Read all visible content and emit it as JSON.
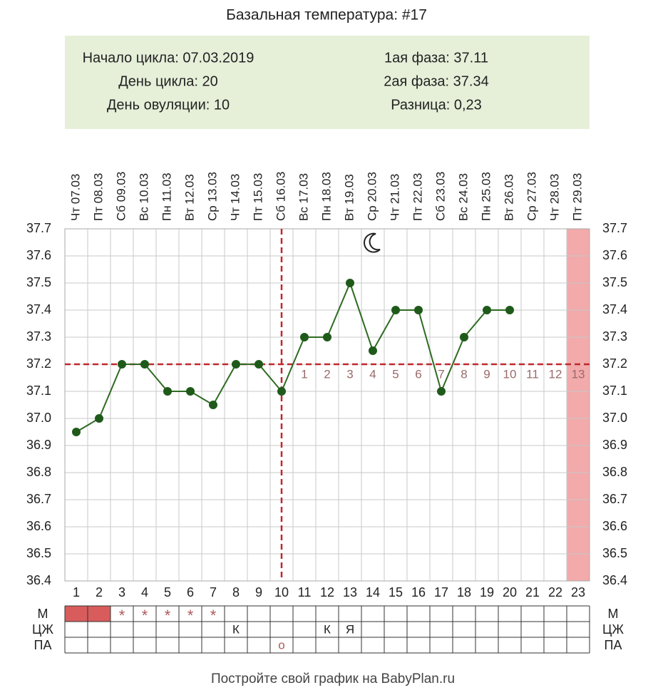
{
  "chart_data": {
    "type": "line",
    "title": "Базальная температура: #17",
    "info_left": [
      "Начало цикла: 07.03.2019",
      "День цикла: 20",
      "День овуляции: 10"
    ],
    "info_right": [
      "1ая фаза: 37.11",
      "2ая фаза: 37.34",
      "Разница: 0,23"
    ],
    "x": [
      1,
      2,
      3,
      4,
      5,
      6,
      7,
      8,
      9,
      10,
      11,
      12,
      13,
      14,
      15,
      16,
      17,
      18,
      19,
      20,
      21,
      22,
      23
    ],
    "dates": [
      "Чт 07.03",
      "Пт 08.03",
      "Сб 09.03",
      "Вс 10.03",
      "Пн 11.03",
      "Вт 12.03",
      "Ср 13.03",
      "Чт 14.03",
      "Пт 15.03",
      "Сб 16.03",
      "Вс 17.03",
      "Пн 18.03",
      "Вт 19.03",
      "Ср 20.03",
      "Чт 21.03",
      "Пт 22.03",
      "Сб 23.03",
      "Вс 24.03",
      "Пн 25.03",
      "Вт 26.03",
      "Ср 27.03",
      "Чт 28.03",
      "Пт 29.03"
    ],
    "values": [
      36.95,
      37.0,
      37.2,
      37.2,
      37.1,
      37.1,
      37.05,
      37.2,
      37.2,
      37.1,
      37.3,
      37.3,
      37.5,
      37.25,
      37.4,
      37.4,
      37.1,
      37.3,
      37.4,
      37.4,
      null,
      null,
      null
    ],
    "color": "#2e6b22",
    "ylim": [
      36.4,
      37.7
    ],
    "yticks": [
      36.4,
      36.5,
      36.6,
      36.7,
      36.8,
      36.9,
      {
        "value": 37.0,
        "label": "37.0"
      },
      37.1,
      37.2,
      37.3,
      37.4,
      37.5,
      37.6,
      37.7
    ],
    "grid": true,
    "coverline": 37.2,
    "ovulation_day": 10,
    "phase_days": [
      1,
      2,
      3,
      4,
      5,
      6,
      7,
      8,
      9,
      10,
      11,
      12,
      13
    ],
    "highlight_day": 23,
    "moon_day": 14,
    "rows": [
      {
        "label": "М",
        "filled": [
          1,
          2
        ],
        "cells": [
          null,
          null,
          "*",
          "*",
          "*",
          "*",
          "*",
          null,
          null,
          null,
          null,
          null,
          null,
          null,
          null,
          null,
          null,
          null,
          null,
          null,
          null,
          null,
          null
        ]
      },
      {
        "label": "ЦЖ",
        "cells": [
          null,
          null,
          null,
          null,
          null,
          null,
          null,
          "К",
          null,
          null,
          null,
          "К",
          "Я",
          null,
          null,
          null,
          null,
          null,
          null,
          null,
          null,
          null,
          null
        ]
      },
      {
        "label": "ПА",
        "cells": [
          null,
          null,
          null,
          null,
          null,
          null,
          null,
          null,
          null,
          "о",
          null,
          null,
          null,
          null,
          null,
          null,
          null,
          null,
          null,
          null,
          null,
          null,
          null
        ]
      }
    ],
    "footer": "Постройте свой график на BabyPlan.ru"
  }
}
